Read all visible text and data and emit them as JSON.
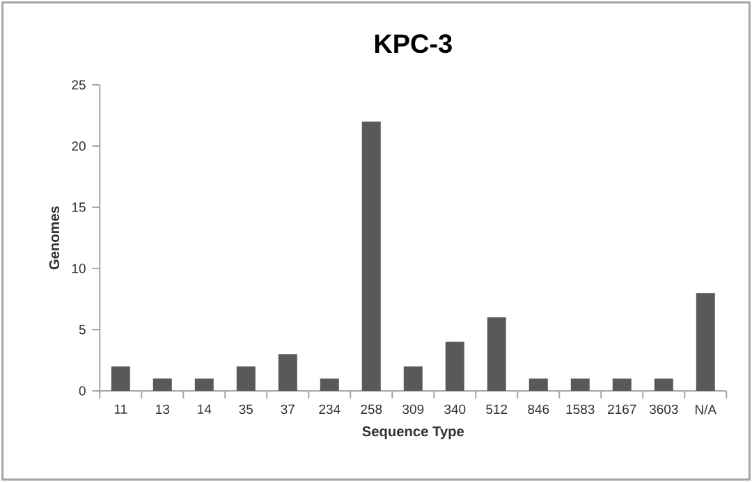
{
  "chart_data": {
    "type": "bar",
    "title": "KPC-3",
    "xlabel": "Sequence Type",
    "ylabel": "Genomes",
    "categories": [
      "11",
      "13",
      "14",
      "35",
      "37",
      "234",
      "258",
      "309",
      "340",
      "512",
      "846",
      "1583",
      "2167",
      "3603",
      "N/A"
    ],
    "values": [
      2,
      1,
      1,
      2,
      3,
      1,
      22,
      2,
      4,
      6,
      1,
      1,
      1,
      1,
      8
    ],
    "color": "#595959",
    "ylim": [
      0,
      25
    ],
    "yticks": [
      0,
      5,
      10,
      15,
      20,
      25
    ],
    "grid": false
  }
}
